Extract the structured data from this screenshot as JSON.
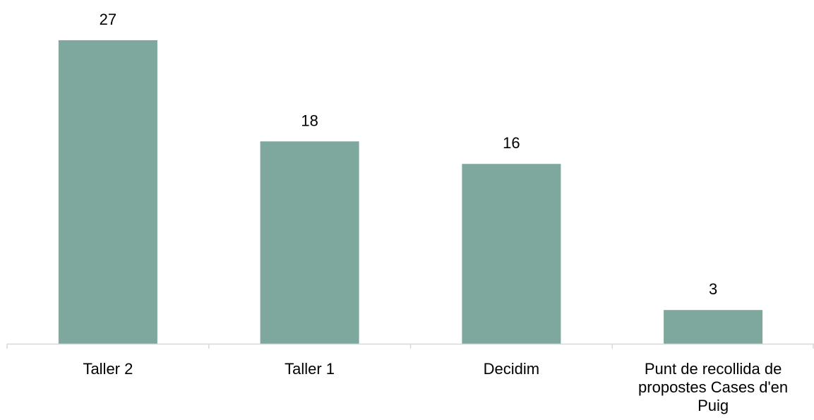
{
  "chart_data": {
    "type": "bar",
    "categories": [
      "Taller 2",
      "Taller 1",
      "Decidim",
      "Punt de recollida de propostes Cases d'en Puig"
    ],
    "category_label_lines": [
      [
        "Taller 2"
      ],
      [
        "Taller 1"
      ],
      [
        "Decidim"
      ],
      [
        "Punt de recollida de",
        "propostes Cases d'en",
        "Puig"
      ]
    ],
    "values": [
      27,
      18,
      16,
      3
    ],
    "data_labels": [
      "27",
      "18",
      "16",
      "3"
    ],
    "title": "",
    "xlabel": "",
    "ylabel": "",
    "ylim": [
      0,
      27
    ],
    "grid": false,
    "legend": "none",
    "bar_color": "#7ea89d",
    "axis_color": "#d9d9d9"
  }
}
